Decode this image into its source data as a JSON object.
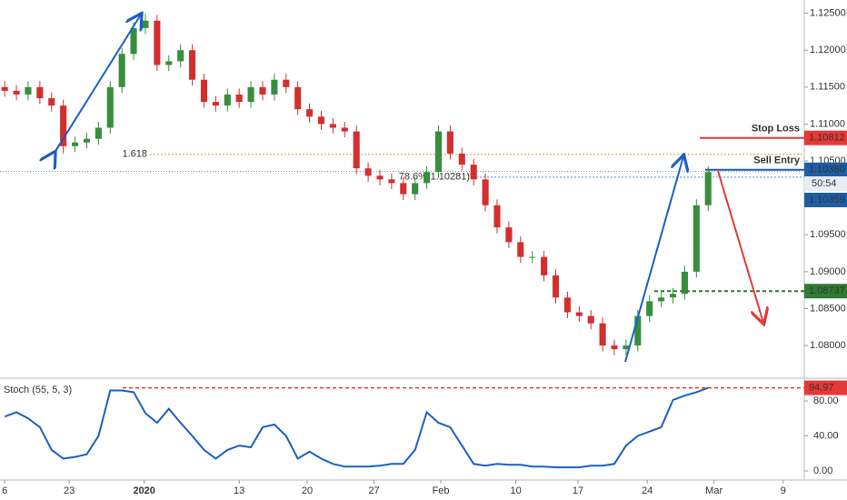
{
  "chart_data": [
    {
      "type": "candlestick",
      "xlim": [
        -0.4,
        68.2
      ],
      "xticks": [
        {
          "value": 0,
          "label": "6"
        },
        {
          "value": 5.5,
          "label": "23"
        },
        {
          "value": 11.9,
          "label": "2020"
        },
        {
          "value": 20,
          "label": "13"
        },
        {
          "value": 25.8,
          "label": "20"
        },
        {
          "value": 31.5,
          "label": "27"
        },
        {
          "value": 37.2,
          "label": "Feb"
        },
        {
          "value": 43.6,
          "label": "10"
        },
        {
          "value": 48.9,
          "label": "17"
        },
        {
          "value": 54.8,
          "label": "24"
        },
        {
          "value": 60.5,
          "label": "Mar"
        },
        {
          "value": 66.4,
          "label": "9"
        }
      ],
      "ylim": [
        1.0757,
        1.1268
      ],
      "yticks": [
        {
          "value": 1.08,
          "label": "1.08000"
        },
        {
          "value": 1.085,
          "label": "1.08500"
        },
        {
          "value": 1.09,
          "label": "1.09000"
        },
        {
          "value": 1.095,
          "label": "1.09500"
        },
        {
          "value": 1.1,
          "label": "1.10000"
        },
        {
          "value": 1.105,
          "label": "1.10500"
        },
        {
          "value": 1.11,
          "label": "1.11000"
        },
        {
          "value": 1.115,
          "label": "1.11500"
        },
        {
          "value": 1.12,
          "label": "1.12000"
        },
        {
          "value": 1.125,
          "label": "1.12500"
        }
      ],
      "up_color": "#388e3c",
      "down_color": "#d32f2f",
      "open": [
        1.115,
        1.1145,
        1.114,
        1.115,
        1.1135,
        1.1125,
        1.107,
        1.1075,
        1.108,
        1.1095,
        1.115,
        1.1195,
        1.123,
        1.124,
        1.118,
        1.1185,
        1.12,
        1.116,
        1.113,
        1.1125,
        1.114,
        1.113,
        1.115,
        1.114,
        1.116,
        1.115,
        1.112,
        1.111,
        1.11,
        1.1095,
        1.109,
        1.104,
        1.103,
        1.1025,
        1.102,
        1.1005,
        1.102,
        1.1035,
        1.109,
        1.106,
        1.1045,
        1.1025,
        1.099,
        1.096,
        1.094,
        1.092,
        1.092,
        1.0895,
        1.0865,
        1.0845,
        1.084,
        1.083,
        1.08,
        1.0795,
        1.08,
        1.084,
        1.086,
        1.0865,
        1.087,
        1.09,
        1.099
      ],
      "high": [
        1.1158,
        1.1153,
        1.1158,
        1.1158,
        1.1143,
        1.1133,
        1.1083,
        1.1088,
        1.1103,
        1.1158,
        1.1203,
        1.1238,
        1.125,
        1.1248,
        1.1193,
        1.1208,
        1.1208,
        1.1168,
        1.1138,
        1.1148,
        1.1148,
        1.1158,
        1.1158,
        1.1168,
        1.1168,
        1.1158,
        1.1128,
        1.1118,
        1.1108,
        1.1103,
        1.1098,
        1.1048,
        1.1038,
        1.1033,
        1.1028,
        1.1028,
        1.1043,
        1.1098,
        1.1098,
        1.1068,
        1.1053,
        1.1033,
        1.0998,
        1.0968,
        1.0948,
        1.0928,
        1.0928,
        1.0903,
        1.0873,
        1.0853,
        1.0848,
        1.0838,
        1.0808,
        1.0808,
        1.0848,
        1.0868,
        1.0873,
        1.0878,
        1.0908,
        1.0998,
        1.1043
      ],
      "low": [
        1.1137,
        1.1132,
        1.1132,
        1.1127,
        1.1117,
        1.106,
        1.1062,
        1.1067,
        1.1072,
        1.1087,
        1.1142,
        1.1187,
        1.1222,
        1.1172,
        1.1172,
        1.1177,
        1.1152,
        1.1122,
        1.1117,
        1.1117,
        1.1122,
        1.1122,
        1.1132,
        1.1132,
        1.1142,
        1.1112,
        1.1102,
        1.1092,
        1.1087,
        1.1082,
        1.1032,
        1.1022,
        1.1017,
        1.1012,
        1.0997,
        1.0997,
        1.1012,
        1.1027,
        1.1052,
        1.1037,
        1.1017,
        1.0982,
        1.0952,
        1.0932,
        1.0912,
        1.0912,
        1.0887,
        1.0857,
        1.0837,
        1.0832,
        1.0822,
        1.0792,
        1.0787,
        1.0787,
        1.0792,
        1.0832,
        1.0852,
        1.0857,
        1.0862,
        1.0892,
        1.0982
      ],
      "close": [
        1.1145,
        1.114,
        1.115,
        1.1135,
        1.1125,
        1.107,
        1.1075,
        1.108,
        1.1095,
        1.115,
        1.1195,
        1.123,
        1.124,
        1.118,
        1.1185,
        1.12,
        1.116,
        1.113,
        1.1125,
        1.114,
        1.113,
        1.115,
        1.114,
        1.116,
        1.115,
        1.112,
        1.111,
        1.11,
        1.1095,
        1.109,
        1.104,
        1.103,
        1.1025,
        1.102,
        1.1005,
        1.102,
        1.1035,
        1.109,
        1.106,
        1.1045,
        1.1025,
        1.099,
        1.096,
        1.094,
        1.092,
        1.092,
        1.0895,
        1.0865,
        1.0845,
        1.084,
        1.083,
        1.08,
        1.0795,
        1.08,
        1.084,
        1.086,
        1.0865,
        1.087,
        1.09,
        1.099,
        1.1035
      ],
      "levels": [
        {
          "label": "Stop Loss",
          "value": 1.10812,
          "value_label": "1.10812",
          "color": "#e53935"
        },
        {
          "label": "Sell Entry",
          "value": 1.1038,
          "value_label": "1.10380",
          "color": "#1e5ea8"
        },
        {
          "value": 1.08737,
          "value_label": "1.08737",
          "color": "#2e7d32"
        }
      ],
      "fib_lines": [
        {
          "label": "1.618",
          "value": 1.1059,
          "color": "#d8953a"
        },
        {
          "label": "78.6%(1.10281)",
          "value": 1.10281,
          "color": "#4a8fd8"
        }
      ],
      "last_price": 1.10359,
      "countdown": "50:54"
    },
    {
      "type": "line",
      "name": "Stoch (55, 5, 3)",
      "color": "#1a5fc8",
      "ylim": [
        -10.4,
        103.9
      ],
      "yticks": [
        {
          "value": 0,
          "label": "0.00"
        },
        {
          "value": 40,
          "label": "40.00"
        },
        {
          "value": 80,
          "label": "80.00"
        }
      ],
      "values": [
        62,
        67,
        60,
        50,
        24,
        14,
        16,
        19,
        40,
        92,
        92,
        90,
        66,
        55,
        71,
        55,
        40,
        24,
        14,
        24,
        29,
        27,
        50,
        53,
        40,
        14,
        22,
        14,
        8,
        5,
        5,
        5,
        6,
        8,
        8,
        24,
        67,
        55,
        50,
        29,
        8,
        6,
        8,
        7,
        7,
        5,
        5,
        4,
        4,
        4,
        6,
        6,
        8,
        29,
        40,
        45,
        50,
        81,
        86,
        90,
        94.97
      ],
      "level": 94.97
    }
  ]
}
